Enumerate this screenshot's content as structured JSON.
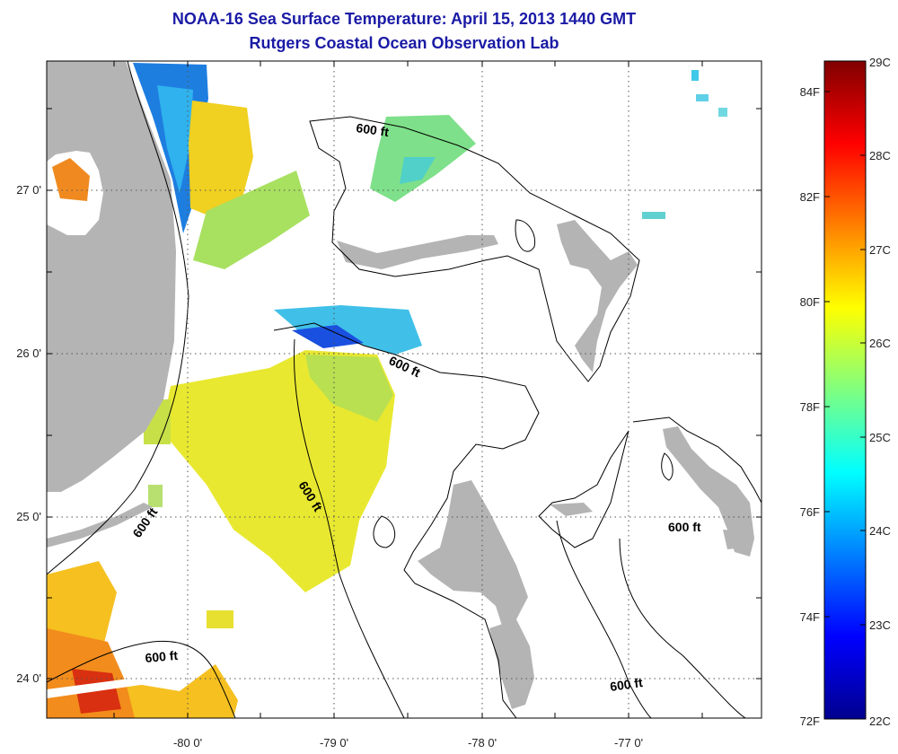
{
  "title": "NOAA-16 Sea Surface Temperature:  April 15, 2013 1440 GMT",
  "subtitle": "Rutgers Coastal Ocean Observation Lab",
  "map": {
    "lon_ticks": [
      "-80 0'",
      "-79 0'",
      "-78 0'",
      "-77 0'"
    ],
    "lat_ticks": [
      "27 0'",
      "26 0'",
      "25 0'",
      "24 0'"
    ],
    "isobath_labels": [
      "600 ft",
      "600 ft",
      "600 ft",
      "600 ft",
      "600 ft",
      "600 ft"
    ],
    "colors": {
      "land": "#b4b4b4",
      "water_no_data": "#ffffff",
      "contour": "#000000"
    }
  },
  "colorbar": {
    "celsius_labels": [
      "29C",
      "28C",
      "27C",
      "26C",
      "25C",
      "24C",
      "23C",
      "22C"
    ],
    "fahrenheit_labels": [
      "84F",
      "82F",
      "80F",
      "78F",
      "76F",
      "74F",
      "72F"
    ],
    "range_c": [
      22,
      29
    ],
    "colormap": "jet"
  }
}
